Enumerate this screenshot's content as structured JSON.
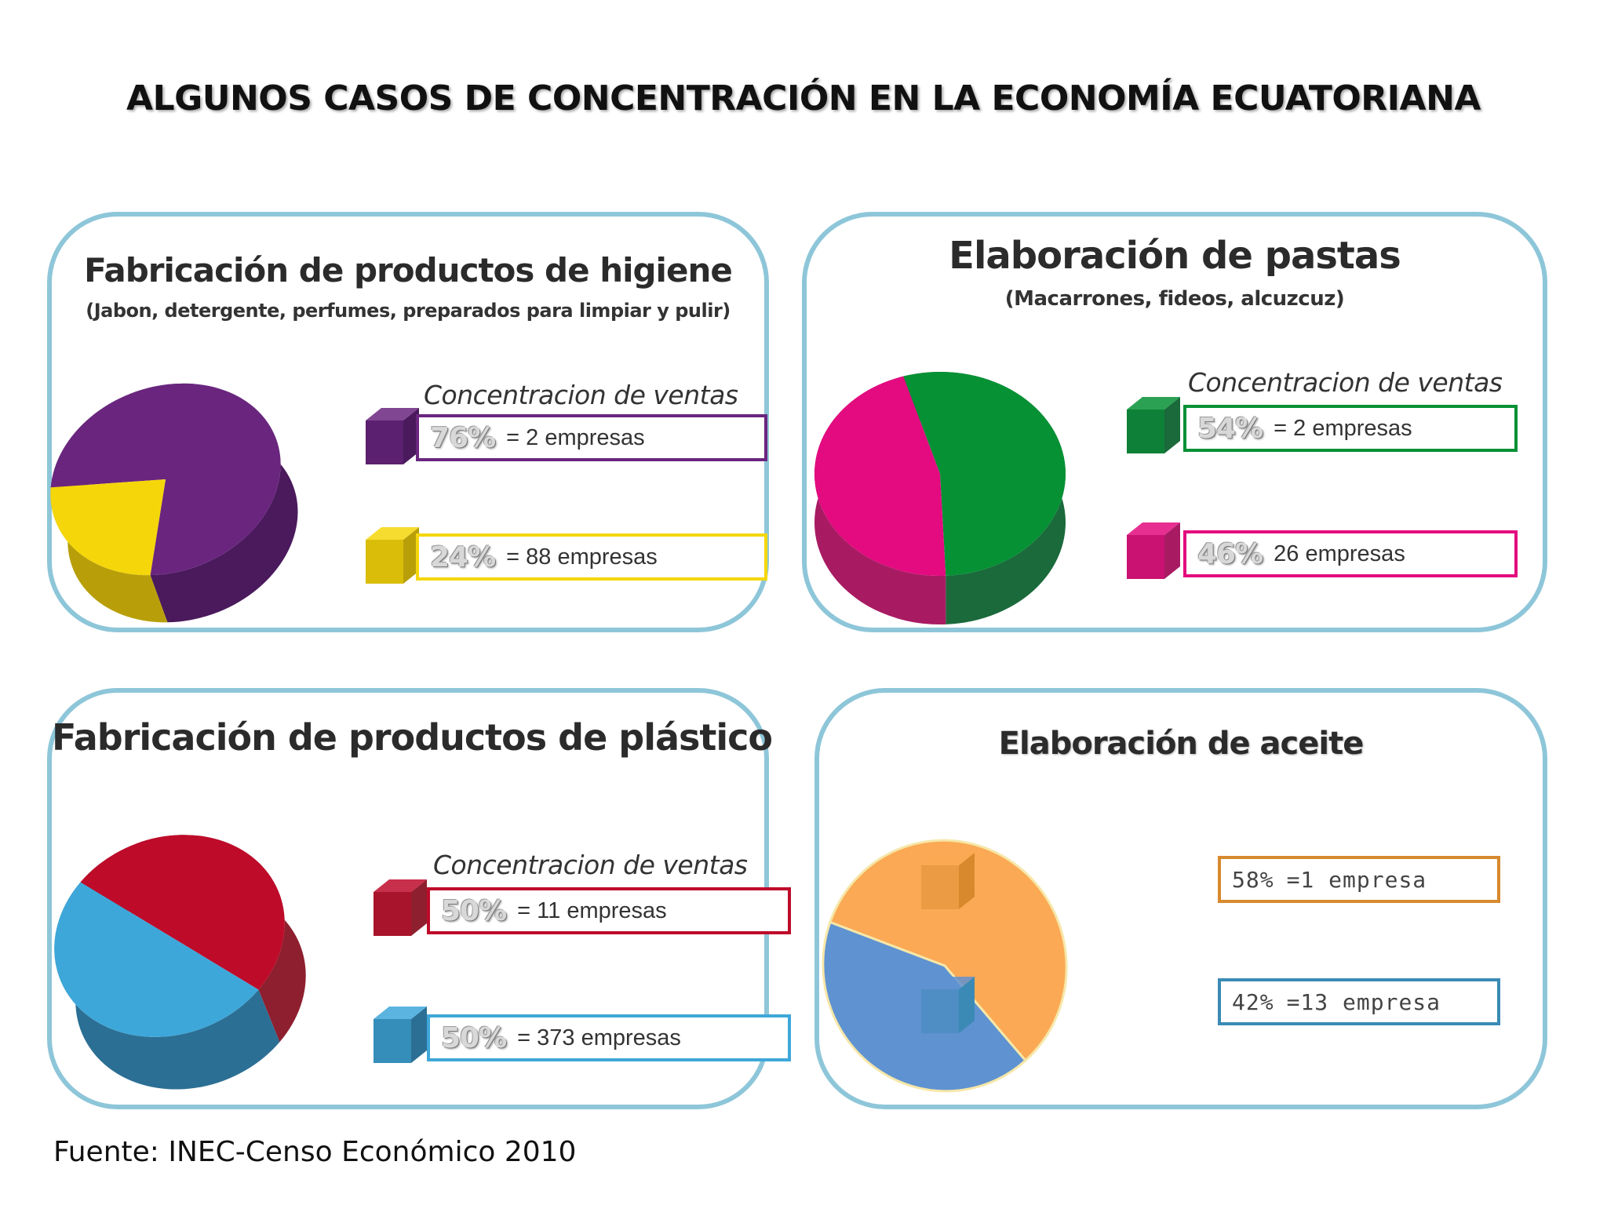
{
  "title": "ALGUNOS CASOS DE CONCENTRACIÓN EN LA ECONOMÍA ECUATORIANA",
  "footer": "Fuente: INEC-Censo Económico 2010",
  "chart_data": [
    {
      "type": "pie",
      "title": "Fabricación de productos de higiene",
      "subtitle": "(Jabon, detergente, perfumes, preparados para limpiar y pulir)",
      "legend_title": "Concentracion de ventas",
      "slices": [
        {
          "label": "2 empresas",
          "value": 76,
          "value_text": "76%",
          "desc": "= 2 empresas",
          "color": "#6a267f",
          "dark": "#4a1a5c"
        },
        {
          "label": "88 empresas",
          "value": 24,
          "value_text": "24%",
          "desc": "= 88 empresas",
          "color": "#f5d60a",
          "dark": "#b89f0a"
        }
      ]
    },
    {
      "type": "pie",
      "title": "Elaboración de pastas",
      "subtitle": "(Macarrones, fideos, alcuzcuz)",
      "legend_title": "Concentracion de ventas",
      "slices": [
        {
          "label": "2 empresas",
          "value": 54,
          "value_text": "54%",
          "desc": "= 2 empresas",
          "color": "#069135",
          "dark": "#1a6a3b"
        },
        {
          "label": "26 empresas",
          "value": 46,
          "value_text": "46%",
          "desc": "26 empresas",
          "color": "#e30b7f",
          "dark": "#a81b63"
        }
      ]
    },
    {
      "type": "pie",
      "title": "Fabricación de productos de plástico",
      "subtitle": "",
      "legend_title": "Concentracion de ventas",
      "slices": [
        {
          "label": "11 empresas",
          "value": 50,
          "value_text": "50%",
          "desc": "= 11 empresas",
          "color": "#be0b2a",
          "dark": "#8e1f2e"
        },
        {
          "label": "373 empresas",
          "value": 50,
          "value_text": "50%",
          "desc": "= 373 empresas",
          "color": "#3ea7d9",
          "dark": "#2c6f94"
        }
      ]
    },
    {
      "type": "pie",
      "title": "Elaboración de aceite",
      "subtitle": "",
      "legend_title": "",
      "slices": [
        {
          "label": "1 empresa",
          "value": 58,
          "value_text": "58%",
          "desc": "=1 empresa",
          "color": "#fba955",
          "dark": "#d8892e"
        },
        {
          "label": "13 empresa",
          "value": 42,
          "value_text": "42%",
          "desc": "=13 empresa",
          "color": "#5f92d1",
          "dark": "#3a8ab5"
        }
      ]
    }
  ]
}
